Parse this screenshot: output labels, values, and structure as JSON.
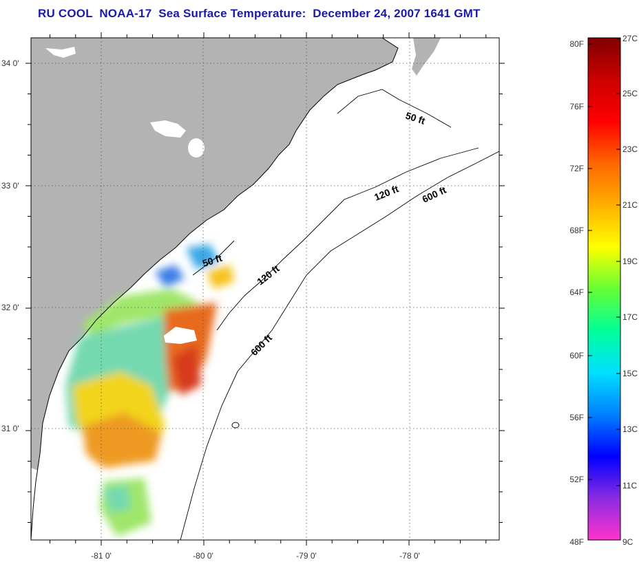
{
  "title": "RU COOL  NOAA-17  Sea Surface Temperature:  December 24, 2007 1641 GMT",
  "colors": {
    "land": "#b3b3b3",
    "ocean": "#ffffff",
    "title": "#1a1aa8",
    "grid": "#555555"
  },
  "map": {
    "lat_labels": [
      "34 0'",
      "33 0'",
      "32 0'",
      "31 0'"
    ],
    "lon_labels": [
      "-81 0'",
      "-80 0'",
      "-79 0'",
      "-78 0'"
    ],
    "contours": [
      {
        "label": "50 ft",
        "where": "northeast near Cape Fear"
      },
      {
        "label": "120 ft",
        "where": "mid shelf off Cape Fear"
      },
      {
        "label": "600 ft",
        "where": "shelf edge northeast"
      },
      {
        "label": "50 ft",
        "where": "off Charleston"
      },
      {
        "label": "120 ft",
        "where": "off Charleston"
      },
      {
        "label": "600 ft",
        "where": "off Georgia"
      }
    ]
  },
  "colorbar": {
    "f_labels": [
      "80F",
      "76F",
      "72F",
      "68F",
      "64F",
      "60F",
      "56F",
      "52F",
      "48F"
    ],
    "c_labels": [
      "27C",
      "25C",
      "23C",
      "21C",
      "19C",
      "17C",
      "15C",
      "13C",
      "11C",
      "9C"
    ],
    "gradient": [
      "#ff33cc",
      "#8a2be2",
      "#0000ff",
      "#0080ff",
      "#00e0ff",
      "#00ff99",
      "#66ff33",
      "#ffff00",
      "#ffb000",
      "#ff6600",
      "#ff0000",
      "#cc0000",
      "#800000"
    ]
  }
}
